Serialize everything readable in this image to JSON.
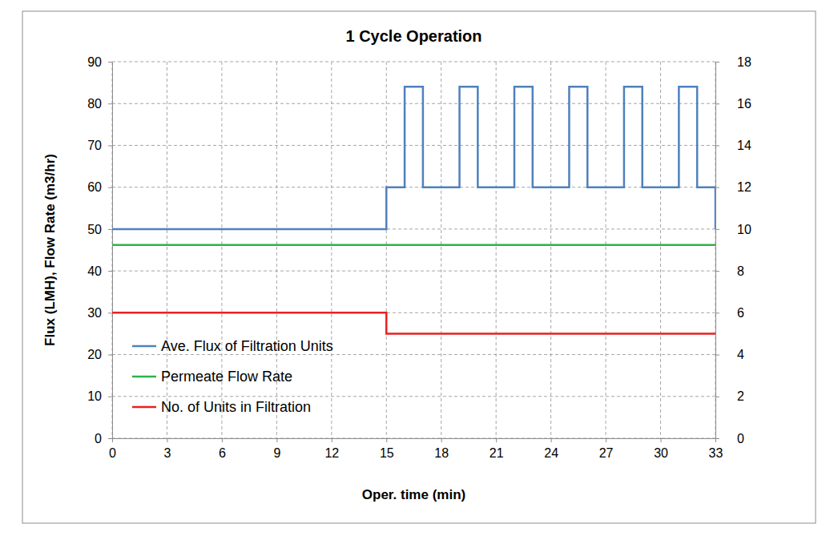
{
  "chart_data": {
    "type": "line",
    "title": "1 Cycle Operation",
    "x_label": "Oper. time (min)",
    "y_label": "Flux (LMH), Flow Rate (m3/hr)",
    "xlim": [
      0,
      33
    ],
    "xticks": [
      0,
      3,
      6,
      9,
      12,
      15,
      18,
      21,
      24,
      27,
      30,
      33
    ],
    "ylim": [
      0,
      90
    ],
    "yticks": [
      0,
      10,
      20,
      30,
      40,
      50,
      60,
      70,
      80,
      90
    ],
    "y2lim": [
      0,
      18
    ],
    "y2ticks": [
      0,
      2,
      4,
      6,
      8,
      10,
      12,
      14,
      16,
      18
    ],
    "grid": true,
    "legend": "lower left",
    "series": [
      {
        "name": "Ave. Flux of Filtration Units",
        "color": "#4f81bd",
        "line_style": "step",
        "x": [
          0,
          15,
          16,
          17,
          19,
          20,
          22,
          23,
          25,
          26,
          28,
          29,
          31,
          32,
          33
        ],
        "values": [
          50,
          60,
          84,
          60,
          84,
          60,
          84,
          60,
          84,
          60,
          84,
          60,
          84,
          60,
          50
        ]
      },
      {
        "name": "Permeate Flow Rate",
        "color": "#2eb34a",
        "line_style": "step",
        "x": [
          0,
          33
        ],
        "values": [
          46.2,
          46.2
        ]
      },
      {
        "name": "No. of Units in Filtration",
        "color": "#e8211f",
        "line_style": "step",
        "axis": "y2",
        "x": [
          0,
          15,
          33
        ],
        "values": [
          6,
          5,
          5
        ]
      }
    ]
  }
}
